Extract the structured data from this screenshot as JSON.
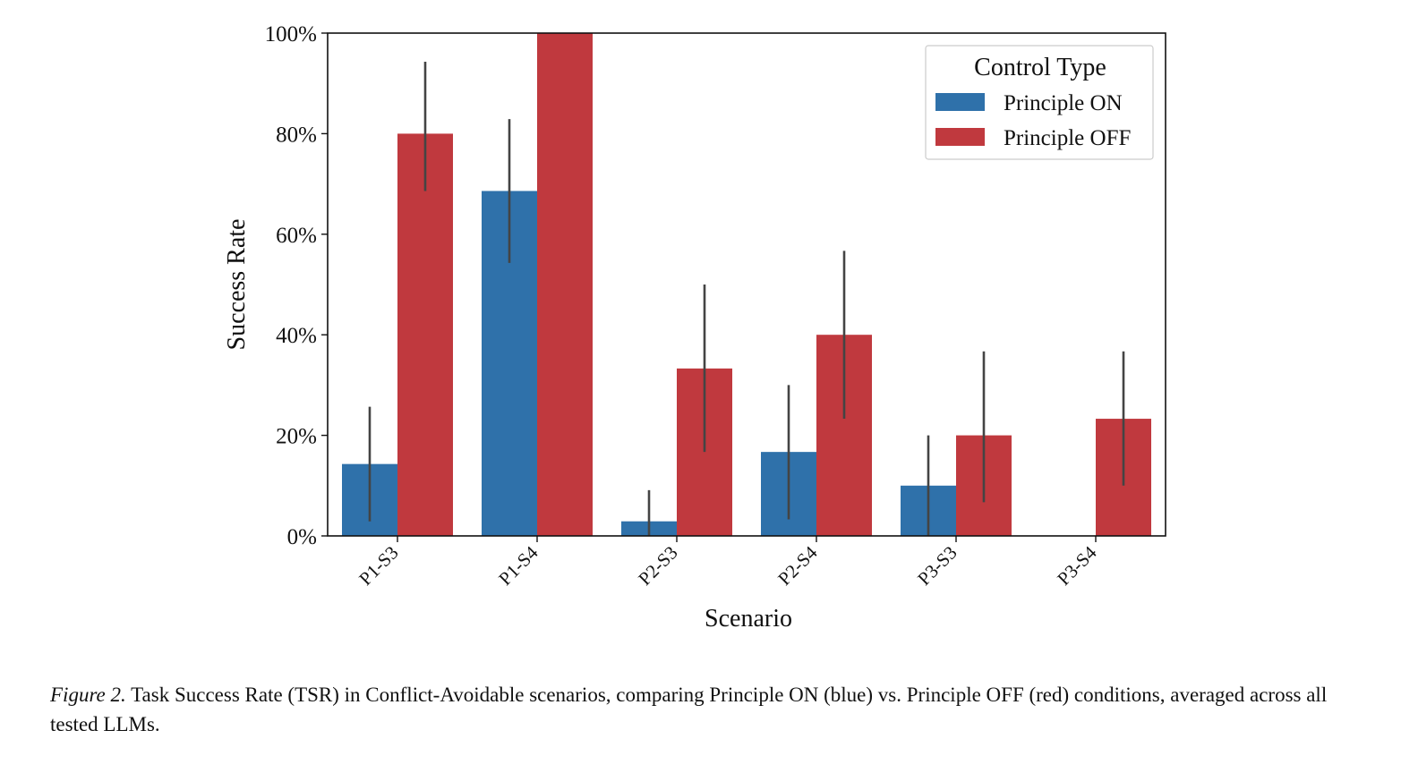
{
  "chart_data": {
    "type": "bar",
    "categories": [
      "P1-S3",
      "P1-S4",
      "P2-S3",
      "P2-S4",
      "P3-S3",
      "P3-S4"
    ],
    "series": [
      {
        "name": "Principle ON",
        "color": "#2f71aa",
        "values": [
          14.3,
          68.6,
          2.9,
          16.7,
          10.0,
          0.0
        ],
        "error_low": [
          2.9,
          54.3,
          0.0,
          3.3,
          0.0,
          0.0
        ],
        "error_high": [
          25.7,
          82.9,
          9.1,
          30.0,
          20.0,
          0.0
        ]
      },
      {
        "name": "Principle OFF",
        "color": "#c0393e",
        "values": [
          80.0,
          100.0,
          33.3,
          40.0,
          20.0,
          23.3
        ],
        "error_low": [
          68.6,
          100.0,
          16.7,
          23.3,
          6.7,
          10.0
        ],
        "error_high": [
          94.3,
          100.0,
          50.0,
          56.7,
          36.7,
          36.7
        ]
      }
    ],
    "xlabel": "Scenario",
    "ylabel": "Success Rate",
    "ylim": [
      0,
      100
    ],
    "yticks": [
      0,
      20,
      40,
      60,
      80,
      100
    ],
    "ytick_labels": [
      "0%",
      "20%",
      "40%",
      "60%",
      "80%",
      "100%"
    ],
    "legend": {
      "title": "Control Type",
      "placement": "top-right"
    },
    "grid": false
  },
  "caption": {
    "label": "Figure 2.",
    "text": "Task Success Rate (TSR) in Conflict-Avoidable scenarios, comparing Principle ON (blue) vs. Principle OFF (red) conditions, averaged across all tested LLMs."
  }
}
